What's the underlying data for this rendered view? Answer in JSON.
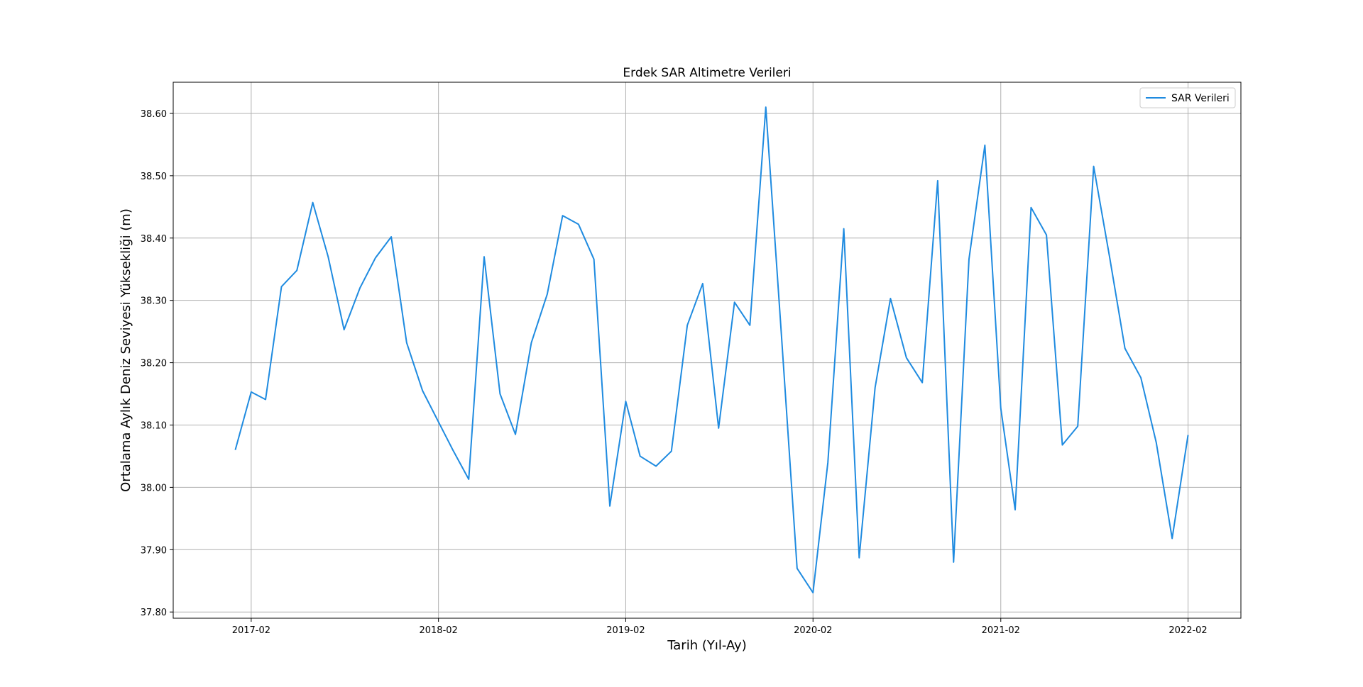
{
  "chart_data": {
    "type": "line",
    "title": "Erdek SAR Altimetre Verileri",
    "xlabel": "Tarih (Yıl-Ay)",
    "ylabel": "Ortalama Aylık Deniz Seviyesi Yüksekliği (m)",
    "ylim": [
      37.79,
      38.65
    ],
    "xlim": [
      "2016-09-02",
      "2022-05-15"
    ],
    "grid": true,
    "legend_position": "top-right",
    "x_ticks": [
      "2017-02",
      "2018-02",
      "2019-02",
      "2020-02",
      "2021-02",
      "2022-02"
    ],
    "y_ticks": [
      "37.80",
      "37.90",
      "38.00",
      "38.10",
      "38.20",
      "38.30",
      "38.40",
      "38.50",
      "38.60"
    ],
    "series": [
      {
        "name": "SAR Verileri",
        "color": "#1f8be0",
        "x": [
          "2017-01",
          "2017-02",
          "2017-03",
          "2017-04",
          "2017-05",
          "2017-06",
          "2017-07",
          "2017-08",
          "2017-09",
          "2017-10",
          "2017-11",
          "2017-12",
          "2018-01",
          "2018-02",
          "2018-03",
          "2018-04",
          "2018-05",
          "2018-06",
          "2018-07",
          "2018-08",
          "2018-09",
          "2018-10",
          "2018-11",
          "2018-12",
          "2019-01",
          "2019-02",
          "2019-03",
          "2019-04",
          "2019-05",
          "2019-06",
          "2019-07",
          "2019-08",
          "2019-09",
          "2019-10",
          "2019-11",
          "2019-12",
          "2020-01",
          "2020-02",
          "2020-03",
          "2020-04",
          "2020-05",
          "2020-06",
          "2020-07",
          "2020-08",
          "2020-09",
          "2020-10",
          "2020-11",
          "2020-12",
          "2021-01",
          "2021-02",
          "2021-03",
          "2021-04",
          "2021-05",
          "2021-06",
          "2021-07",
          "2021-08",
          "2021-09",
          "2021-10",
          "2021-11",
          "2021-12",
          "2022-01",
          "2022-02"
        ],
        "values": [
          38.06,
          38.153,
          38.141,
          38.322,
          38.348,
          38.457,
          38.37,
          38.253,
          38.32,
          38.368,
          38.402,
          38.232,
          38.155,
          38.105,
          38.06,
          38.013,
          38.37,
          38.15,
          38.085,
          38.232,
          38.31,
          38.436,
          38.422,
          38.366,
          37.97,
          38.138,
          38.05,
          38.034,
          38.058,
          38.26,
          38.327,
          38.095,
          38.297,
          38.26,
          38.61,
          38.25,
          37.87,
          37.831,
          38.04,
          38.415,
          37.887,
          38.16,
          38.303,
          38.208,
          38.168,
          38.492,
          37.88,
          38.366,
          38.549,
          38.127,
          37.964,
          38.449,
          38.405,
          38.068,
          38.098,
          38.515,
          38.37,
          38.223,
          38.176,
          38.072,
          37.918,
          38.084
        ]
      }
    ]
  }
}
